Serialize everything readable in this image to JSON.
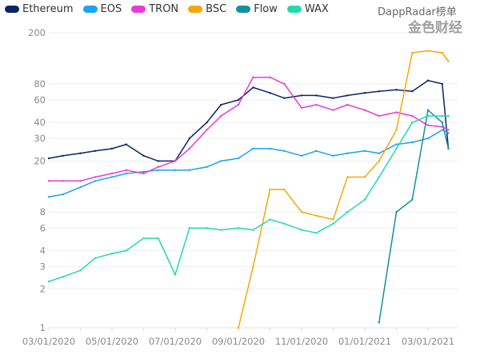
{
  "chart_data": {
    "type": "line",
    "title": "",
    "xlabel": "",
    "ylabel": "",
    "yscale": "log",
    "ylim": [
      1,
      200
    ],
    "y_ticks": [
      1,
      2,
      3,
      4,
      6,
      8,
      20,
      30,
      40,
      60,
      80,
      200
    ],
    "x_tick_labels": [
      "03/01/2020",
      "05/01/2020",
      "07/01/2020",
      "09/01/2020",
      "11/01/2020",
      "01/01/2021",
      "03/01/2021"
    ],
    "grid": true,
    "legend_position": "top-left",
    "x": [
      "2020-03-01",
      "2020-03-15",
      "2020-04-01",
      "2020-04-15",
      "2020-05-01",
      "2020-05-15",
      "2020-06-01",
      "2020-06-15",
      "2020-07-01",
      "2020-07-15",
      "2020-08-01",
      "2020-08-15",
      "2020-09-01",
      "2020-09-15",
      "2020-10-01",
      "2020-10-15",
      "2020-11-01",
      "2020-11-15",
      "2020-12-01",
      "2020-12-15",
      "2021-01-01",
      "2021-01-15",
      "2021-02-01",
      "2021-02-15",
      "2021-03-01",
      "2021-03-15",
      "2021-03-21"
    ],
    "series": [
      {
        "name": "Ethereum",
        "color": "#0d2463",
        "values": [
          21,
          22,
          23,
          24,
          25,
          27,
          22,
          20,
          20,
          30,
          40,
          55,
          60,
          75,
          68,
          62,
          65,
          65,
          62,
          65,
          68,
          70,
          72,
          70,
          85,
          80,
          25
        ]
      },
      {
        "name": "EOS",
        "color": "#1aa3f0",
        "values": [
          10.5,
          11,
          12.5,
          14,
          15,
          16,
          16.5,
          17,
          17,
          17,
          18,
          20,
          21,
          25,
          25,
          24,
          22,
          24,
          22,
          23,
          24,
          23,
          27,
          28,
          30,
          35,
          33
        ]
      },
      {
        "name": "TRON",
        "color": "#e83ad9",
        "values": [
          14,
          14,
          14,
          15,
          16,
          17,
          16,
          18,
          20,
          25,
          35,
          45,
          55,
          90,
          90,
          80,
          52,
          55,
          50,
          55,
          50,
          45,
          48,
          45,
          38,
          37,
          35
        ]
      },
      {
        "name": "BSC",
        "color": "#f5a70a",
        "values": [
          null,
          null,
          null,
          null,
          null,
          null,
          null,
          null,
          null,
          null,
          null,
          null,
          1,
          3,
          12,
          12,
          8,
          7.5,
          7,
          15,
          15,
          20,
          35,
          140,
          145,
          140,
          120
        ]
      },
      {
        "name": "Flow",
        "color": "#12919f",
        "values": [
          null,
          null,
          null,
          null,
          null,
          null,
          null,
          null,
          null,
          null,
          null,
          null,
          null,
          null,
          null,
          null,
          null,
          null,
          null,
          null,
          null,
          1.1,
          8,
          10,
          50,
          40,
          25
        ]
      },
      {
        "name": "WAX",
        "color": "#22dab0",
        "values": [
          2.3,
          2.5,
          2.8,
          3.5,
          3.8,
          4,
          5,
          5,
          2.6,
          6,
          6,
          5.8,
          6,
          5.8,
          7,
          6.5,
          5.8,
          5.5,
          6.5,
          8,
          10,
          15,
          25,
          40,
          45,
          45,
          45
        ]
      }
    ]
  },
  "watermark": {
    "line1": "DappRadar榜单",
    "line2": "金色财经"
  }
}
